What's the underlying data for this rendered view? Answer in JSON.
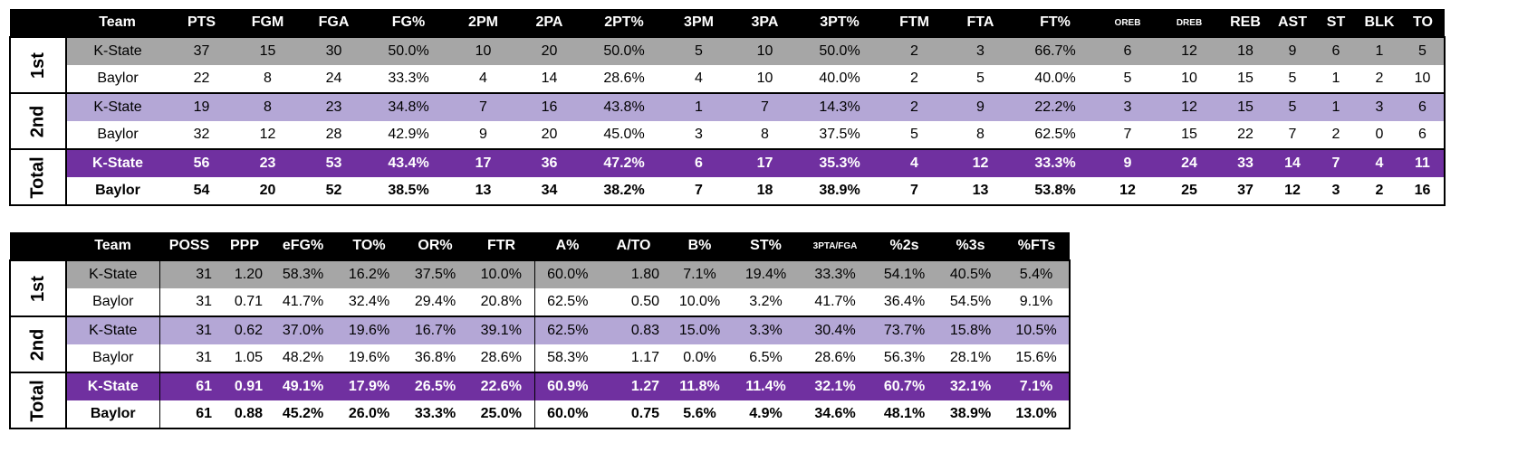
{
  "box_score": {
    "headers": [
      "Team",
      "PTS",
      "FGM",
      "FGA",
      "FG%",
      "2PM",
      "2PA",
      "2PT%",
      "3PM",
      "3PA",
      "3PT%",
      "FTM",
      "FTA",
      "FT%",
      "OREB",
      "DREB",
      "REB",
      "AST",
      "ST",
      "BLK",
      "TO"
    ],
    "periods": [
      {
        "label": "1st",
        "rows": [
          [
            "K-State",
            "37",
            "15",
            "30",
            "50.0%",
            "10",
            "20",
            "50.0%",
            "5",
            "10",
            "50.0%",
            "2",
            "3",
            "66.7%",
            "6",
            "12",
            "18",
            "9",
            "6",
            "1",
            "5"
          ],
          [
            "Baylor",
            "22",
            "8",
            "24",
            "33.3%",
            "4",
            "14",
            "28.6%",
            "4",
            "10",
            "40.0%",
            "2",
            "5",
            "40.0%",
            "5",
            "10",
            "15",
            "5",
            "1",
            "2",
            "10"
          ]
        ]
      },
      {
        "label": "2nd",
        "rows": [
          [
            "K-State",
            "19",
            "8",
            "23",
            "34.8%",
            "7",
            "16",
            "43.8%",
            "1",
            "7",
            "14.3%",
            "2",
            "9",
            "22.2%",
            "3",
            "12",
            "15",
            "5",
            "1",
            "3",
            "6"
          ],
          [
            "Baylor",
            "32",
            "12",
            "28",
            "42.9%",
            "9",
            "20",
            "45.0%",
            "3",
            "8",
            "37.5%",
            "5",
            "8",
            "62.5%",
            "7",
            "15",
            "22",
            "7",
            "2",
            "0",
            "6"
          ]
        ]
      },
      {
        "label": "Total",
        "rows": [
          [
            "K-State",
            "56",
            "23",
            "53",
            "43.4%",
            "17",
            "36",
            "47.2%",
            "6",
            "17",
            "35.3%",
            "4",
            "12",
            "33.3%",
            "9",
            "24",
            "33",
            "14",
            "7",
            "4",
            "11"
          ],
          [
            "Baylor",
            "54",
            "20",
            "52",
            "38.5%",
            "13",
            "34",
            "38.2%",
            "7",
            "18",
            "38.9%",
            "7",
            "13",
            "53.8%",
            "12",
            "25",
            "37",
            "12",
            "3",
            "2",
            "16"
          ]
        ]
      }
    ]
  },
  "advanced": {
    "headers": [
      "Team",
      "POSS",
      "PPP",
      "eFG%",
      "TO%",
      "OR%",
      "FTR",
      "A%",
      "A/TO",
      "B%",
      "ST%",
      "3PTA/FGA",
      "%2s",
      "%3s",
      "%FTs"
    ],
    "periods": [
      {
        "label": "1st",
        "rows": [
          [
            "K-State",
            "31",
            "1.20",
            "58.3%",
            "16.2%",
            "37.5%",
            "10.0%",
            "60.0%",
            "1.80",
            "7.1%",
            "19.4%",
            "33.3%",
            "54.1%",
            "40.5%",
            "5.4%"
          ],
          [
            "Baylor",
            "31",
            "0.71",
            "41.7%",
            "32.4%",
            "29.4%",
            "20.8%",
            "62.5%",
            "0.50",
            "10.0%",
            "3.2%",
            "41.7%",
            "36.4%",
            "54.5%",
            "9.1%"
          ]
        ]
      },
      {
        "label": "2nd",
        "rows": [
          [
            "K-State",
            "31",
            "0.62",
            "37.0%",
            "19.6%",
            "16.7%",
            "39.1%",
            "62.5%",
            "0.83",
            "15.0%",
            "3.3%",
            "30.4%",
            "73.7%",
            "15.8%",
            "10.5%"
          ],
          [
            "Baylor",
            "31",
            "1.05",
            "48.2%",
            "19.6%",
            "36.8%",
            "28.6%",
            "58.3%",
            "1.17",
            "0.0%",
            "6.5%",
            "28.6%",
            "56.3%",
            "28.1%",
            "15.6%"
          ]
        ]
      },
      {
        "label": "Total",
        "rows": [
          [
            "K-State",
            "61",
            "0.91",
            "49.1%",
            "17.9%",
            "26.5%",
            "22.6%",
            "60.9%",
            "1.27",
            "11.8%",
            "11.4%",
            "32.1%",
            "60.7%",
            "32.1%",
            "7.1%"
          ],
          [
            "Baylor",
            "61",
            "0.88",
            "45.2%",
            "26.0%",
            "33.3%",
            "25.0%",
            "60.0%",
            "0.75",
            "5.6%",
            "4.9%",
            "34.6%",
            "48.1%",
            "38.9%",
            "13.0%"
          ]
        ]
      }
    ]
  },
  "colors": {
    "header_bg": "#000000",
    "first_half_kstate": "#a6a6a6",
    "second_half_kstate": "#b4a7d6",
    "total_kstate": "#7030a0",
    "baylor_rows": "#ffffff"
  }
}
